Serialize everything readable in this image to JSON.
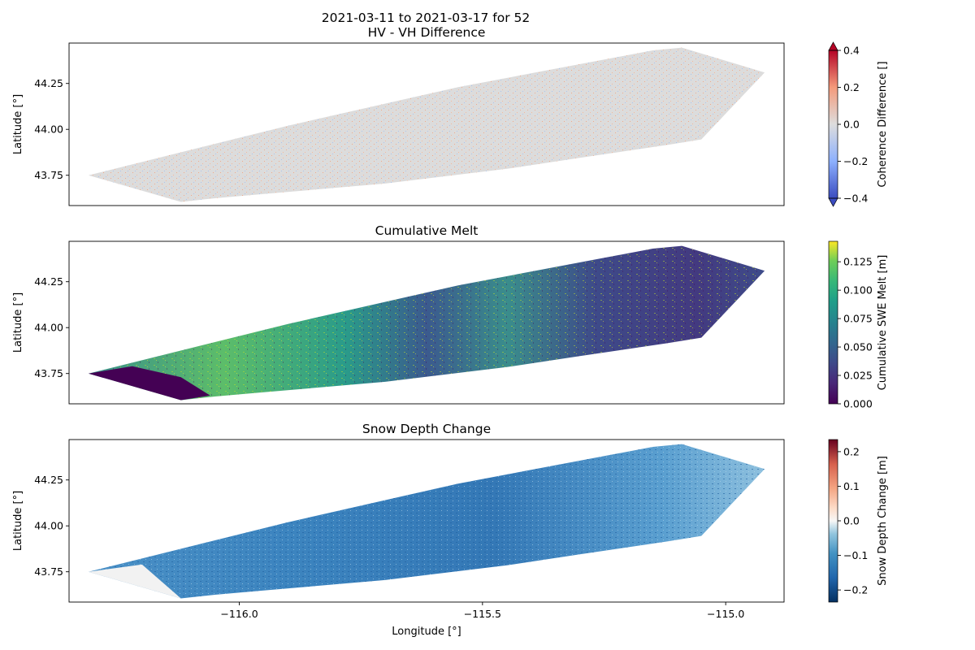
{
  "figure": {
    "suptitle_line1": "2021-03-11 to 2021-03-17 for 52"
  },
  "chart_data": [
    {
      "type": "heatmap",
      "title": "HV - VH Difference",
      "xlabel": "",
      "ylabel": "Latitude [°]",
      "xlim": [
        -116.35,
        -114.88
      ],
      "ylim": [
        43.585,
        44.47
      ],
      "yticks": [
        43.75,
        44.0,
        44.25
      ],
      "ytick_labels": [
        "43.75",
        "44.00",
        "44.25"
      ],
      "colorbar": {
        "label": "Coherence Difference []",
        "colormap": "coolwarm",
        "extend": "both",
        "range": [
          -0.4,
          0.4
        ],
        "ticks": [
          -0.4,
          -0.2,
          0.0,
          0.2,
          0.4
        ],
        "tick_labels": [
          "−0.4",
          "−0.2",
          "0.0",
          "0.2",
          "0.4"
        ]
      },
      "swath_fill": "#dcdcdc",
      "description_values": "near-zero coherence difference, slight positive speckle along northern edge"
    },
    {
      "type": "heatmap",
      "title": "Cumulative Melt",
      "xlabel": "",
      "ylabel": "Latitude [°]",
      "xlim": [
        -116.35,
        -114.88
      ],
      "ylim": [
        43.585,
        44.47
      ],
      "yticks": [
        43.75,
        44.0,
        44.25
      ],
      "ytick_labels": [
        "43.75",
        "44.00",
        "44.25"
      ],
      "colorbar": {
        "label": "Cumulative SWE Melt [m]",
        "colormap": "viridis",
        "extend": "neither",
        "range": [
          0.0,
          0.143
        ],
        "ticks": [
          0.0,
          0.025,
          0.05,
          0.075,
          0.1,
          0.125
        ],
        "tick_labels": [
          "0.000",
          "0.025",
          "0.050",
          "0.075",
          "0.100",
          "0.125"
        ]
      },
      "swath_fill": "#2b7a8c"
    },
    {
      "type": "heatmap",
      "title": "Snow Depth Change",
      "xlabel": "Longitude [°]",
      "ylabel": "Latitude [°]",
      "xlim": [
        -116.35,
        -114.88
      ],
      "ylim": [
        43.585,
        44.47
      ],
      "xticks": [
        -116.0,
        -115.5,
        -115.0
      ],
      "xtick_labels": [
        "−116.0",
        "−115.5",
        "−115.0"
      ],
      "yticks": [
        43.75,
        44.0,
        44.25
      ],
      "ytick_labels": [
        "43.75",
        "44.00",
        "44.25"
      ],
      "colorbar": {
        "label": "Snow Depth Change [m]",
        "colormap": "RdBu_r",
        "extend": "neither",
        "range": [
          -0.235,
          0.235
        ],
        "ticks": [
          -0.2,
          -0.1,
          0.0,
          0.1,
          0.2
        ],
        "tick_labels": [
          "−0.2",
          "−0.1",
          "0.0",
          "0.1",
          "0.2"
        ]
      },
      "swath_fill": "#3f83bd"
    }
  ]
}
